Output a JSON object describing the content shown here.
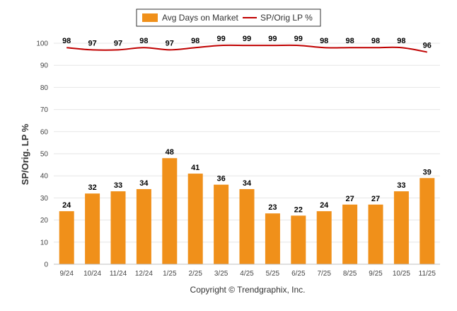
{
  "chart_data": {
    "type": "bar",
    "categories": [
      "9/24",
      "10/24",
      "11/24",
      "12/24",
      "1/25",
      "2/25",
      "3/25",
      "4/25",
      "5/25",
      "6/25",
      "7/25",
      "8/25",
      "9/25",
      "10/25",
      "11/25"
    ],
    "series": [
      {
        "name": "Avg Days on Market",
        "type": "bar",
        "color": "#f0901a",
        "values": [
          24,
          32,
          33,
          34,
          48,
          41,
          36,
          34,
          23,
          22,
          24,
          27,
          27,
          33,
          39
        ],
        "labels": [
          "24",
          "32",
          "33",
          "34",
          "48",
          "41",
          "36",
          "34",
          "23",
          "22",
          "24",
          "27",
          "27",
          "33",
          "39"
        ]
      },
      {
        "name": "SP/Orig LP %",
        "type": "line",
        "color": "#c00000",
        "values": [
          98,
          97,
          97,
          98,
          97,
          98,
          99,
          99,
          99,
          99,
          98,
          98,
          98,
          98,
          96
        ],
        "labels": [
          "98",
          "97",
          "97",
          "98",
          "97",
          "98",
          "99",
          "99",
          "99",
          "99",
          "98",
          "98",
          "98",
          "98",
          "96"
        ]
      }
    ],
    "ylabel": "SP/Orig. LP %",
    "xlabel": "",
    "ylim": [
      0,
      100
    ],
    "yticks": [
      "0",
      "10",
      "20",
      "30",
      "40",
      "50",
      "60",
      "70",
      "80",
      "90",
      "100"
    ],
    "grid": true,
    "legend_position": "top-center",
    "copyright": "Copyright © Trendgraphix, Inc."
  }
}
